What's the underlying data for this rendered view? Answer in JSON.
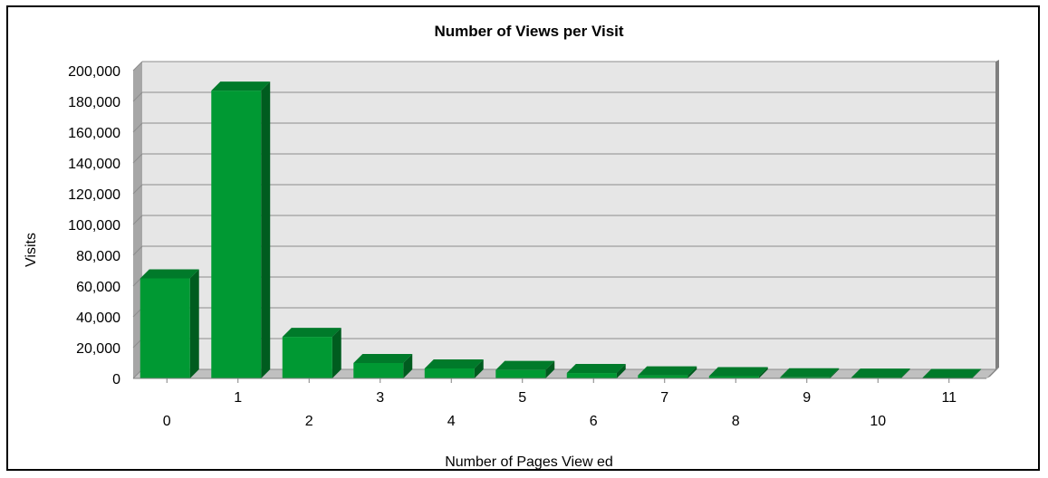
{
  "chart_data": {
    "type": "bar",
    "title": "Number of Views per Visit",
    "xlabel": "Number of Pages View ed",
    "ylabel": "Visits",
    "categories": [
      "0",
      "1",
      "2",
      "3",
      "4",
      "5",
      "6",
      "7",
      "8",
      "9",
      "10",
      "11"
    ],
    "values": [
      65000,
      187000,
      27000,
      10000,
      6500,
      5500,
      3500,
      2000,
      1500,
      700,
      500,
      300
    ],
    "ylim": [
      0,
      200000
    ],
    "yticks": [
      "0",
      "20,000",
      "40,000",
      "60,000",
      "80,000",
      "100,000",
      "120,000",
      "140,000",
      "160,000",
      "180,000",
      "200,000"
    ],
    "grid": true,
    "style": "3d",
    "colors": {
      "bar_front": "#009933",
      "bar_top": "#007a2a",
      "bar_side": "#005c1f",
      "plot_back": "#e6e6e6",
      "plot_side": "#a6a6a6",
      "plot_floor": "#c0c0c0"
    }
  }
}
